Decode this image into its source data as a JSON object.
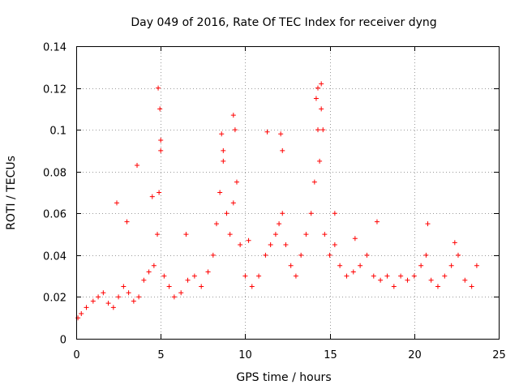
{
  "chart_data": {
    "type": "scatter",
    "title": "Day 049 of 2016, Rate Of TEC Index for receiver dyng",
    "xlabel": "GPS time / hours",
    "ylabel": "ROTI / TECUs",
    "xlim": [
      0,
      25
    ],
    "ylim": [
      0,
      0.14
    ],
    "xticks": [
      "0",
      "5",
      "10",
      "15",
      "20",
      "25"
    ],
    "yticks": [
      "0",
      "0.02",
      "0.04",
      "0.06",
      "0.08",
      "0.1",
      "0.12",
      "0.14"
    ],
    "grid": true,
    "marker": "plus",
    "color": "#ff0000",
    "series": [
      {
        "x": [
          0.1,
          0.3,
          0.6,
          1.0,
          1.3,
          1.6,
          1.9,
          2.2,
          2.5,
          2.8,
          3.1,
          3.4,
          3.7,
          4.0,
          4.3,
          4.6,
          4.8,
          4.9,
          5.0,
          5.2,
          5.5,
          5.8,
          6.2,
          6.6,
          7.0,
          7.4,
          7.8,
          8.1,
          8.3,
          8.5,
          8.7,
          8.9,
          9.1,
          9.3,
          9.5,
          9.7,
          10.0,
          10.4,
          10.8,
          11.2,
          11.5,
          11.8,
          12.0,
          12.2,
          12.4,
          12.7,
          13.0,
          13.3,
          13.6,
          13.9,
          14.1,
          14.3,
          14.5,
          14.7,
          15.0,
          15.3,
          15.6,
          16.0,
          16.4,
          16.8,
          17.2,
          17.6,
          18.0,
          18.4,
          18.8,
          19.2,
          19.6,
          20.0,
          20.4,
          20.7,
          21.0,
          21.4,
          21.8,
          22.2,
          22.6,
          23.0,
          23.4,
          23.7,
          4.85,
          4.95,
          5.0,
          3.6,
          8.6,
          8.7,
          9.3,
          9.4,
          11.3,
          12.1,
          12.2,
          14.2,
          14.3,
          14.5,
          14.6,
          14.4,
          2.4,
          3.0,
          4.5,
          6.5,
          10.2,
          15.3,
          16.5,
          17.8,
          20.8,
          22.4
        ],
        "y": [
          0.01,
          0.012,
          0.015,
          0.018,
          0.02,
          0.022,
          0.017,
          0.015,
          0.02,
          0.025,
          0.022,
          0.018,
          0.02,
          0.028,
          0.032,
          0.035,
          0.05,
          0.07,
          0.09,
          0.03,
          0.025,
          0.02,
          0.022,
          0.028,
          0.03,
          0.025,
          0.032,
          0.04,
          0.055,
          0.07,
          0.085,
          0.06,
          0.05,
          0.065,
          0.075,
          0.045,
          0.03,
          0.025,
          0.03,
          0.04,
          0.045,
          0.05,
          0.055,
          0.06,
          0.045,
          0.035,
          0.03,
          0.04,
          0.05,
          0.06,
          0.075,
          0.1,
          0.11,
          0.05,
          0.04,
          0.045,
          0.035,
          0.03,
          0.032,
          0.035,
          0.04,
          0.03,
          0.028,
          0.03,
          0.025,
          0.03,
          0.028,
          0.03,
          0.035,
          0.04,
          0.028,
          0.025,
          0.03,
          0.035,
          0.04,
          0.028,
          0.025,
          0.035,
          0.12,
          0.11,
          0.095,
          0.083,
          0.098,
          0.09,
          0.107,
          0.1,
          0.099,
          0.098,
          0.09,
          0.115,
          0.12,
          0.122,
          0.1,
          0.085,
          0.065,
          0.056,
          0.068,
          0.05,
          0.047,
          0.06,
          0.048,
          0.056,
          0.055,
          0.046
        ]
      }
    ]
  }
}
